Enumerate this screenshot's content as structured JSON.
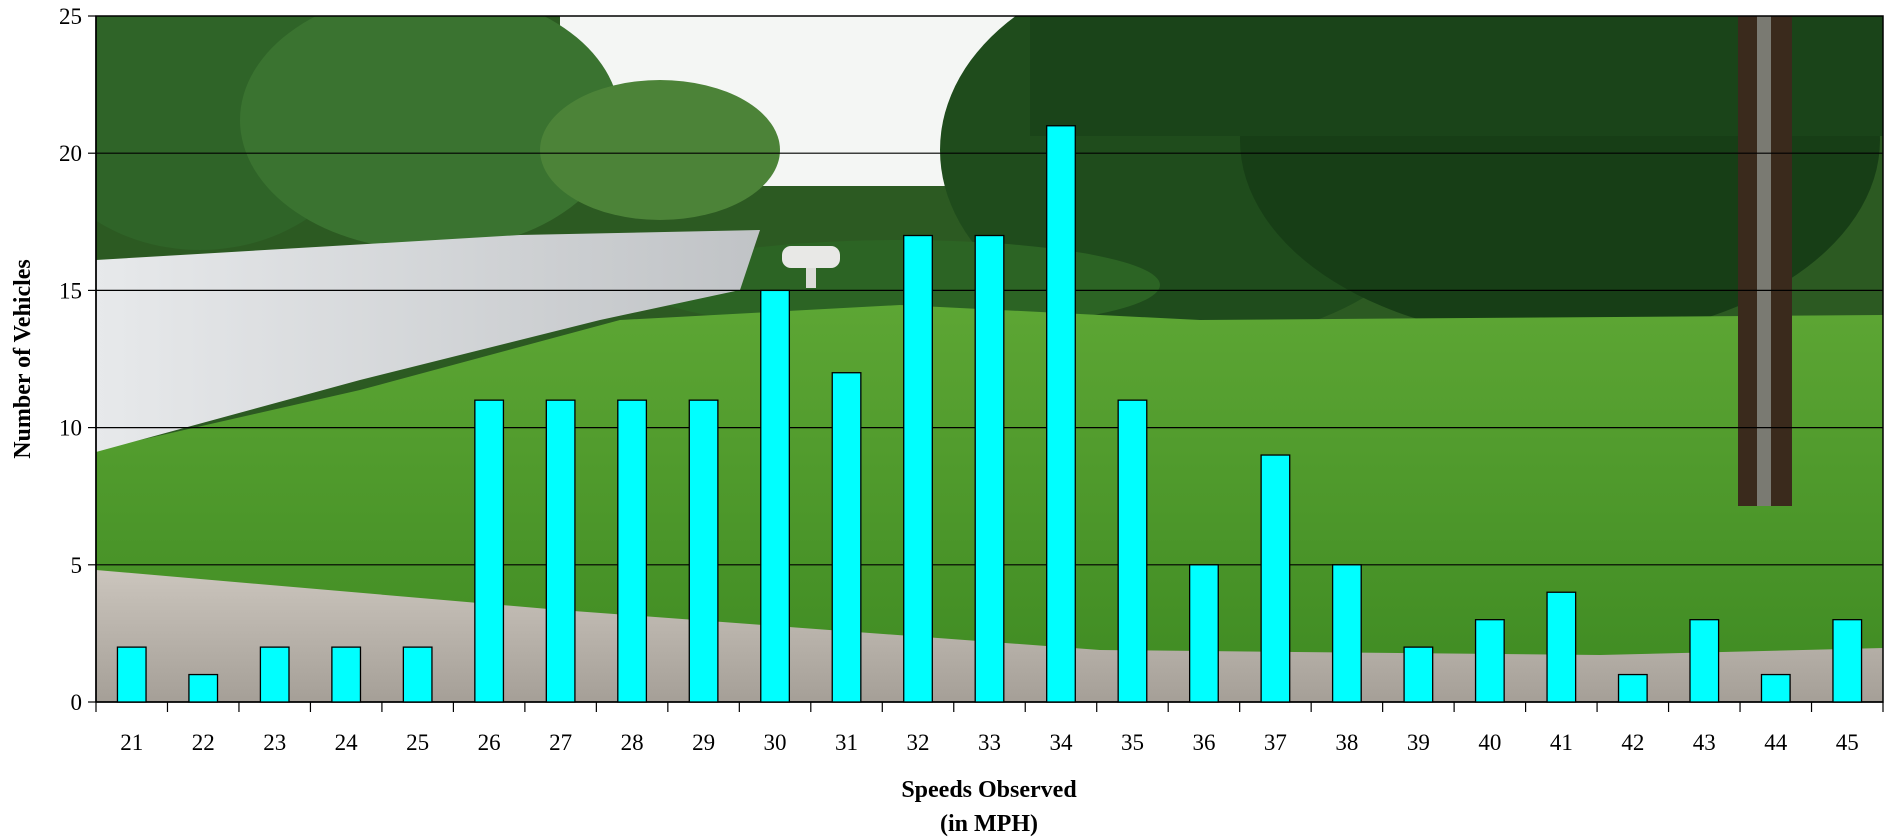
{
  "chart_data": {
    "type": "bar",
    "categories": [
      "21",
      "22",
      "23",
      "24",
      "25",
      "26",
      "27",
      "28",
      "29",
      "30",
      "31",
      "32",
      "33",
      "34",
      "35",
      "36",
      "37",
      "38",
      "39",
      "40",
      "41",
      "42",
      "43",
      "44",
      "45"
    ],
    "values": [
      2,
      1,
      2,
      2,
      2,
      11,
      11,
      11,
      11,
      15,
      12,
      17,
      17,
      21,
      11,
      5,
      9,
      5,
      2,
      3,
      4,
      1,
      3,
      1,
      3
    ],
    "title": "",
    "xlabel_line1": "Speeds Observed",
    "xlabel_line2": "(in MPH)",
    "ylabel": "Number of Vehicles",
    "ylim": [
      0,
      25
    ],
    "yticks": [
      0,
      5,
      10,
      15,
      20,
      25
    ],
    "grid": true,
    "legend": "none",
    "background": "photo of a residential street with lawn and trees",
    "colors": {
      "bar": "#00ffff",
      "bar_outline": "#000000",
      "grass": "#4f9a2a",
      "tree_dark": "#1c4a1a",
      "road": "#c9cbcd",
      "sky": "#f4f6f4",
      "gravel": "#b9b3ab"
    }
  }
}
